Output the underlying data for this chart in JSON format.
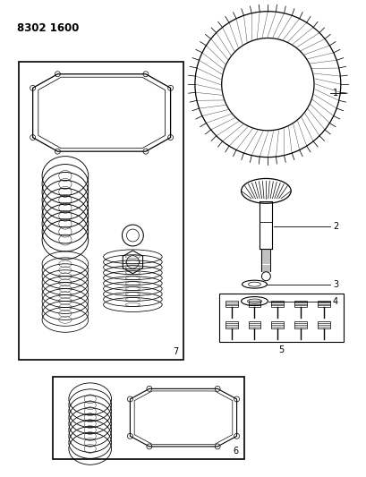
{
  "title": "8302 1600",
  "background_color": "#ffffff",
  "line_color": "#000000",
  "fig_width": 4.1,
  "fig_height": 5.33,
  "dpi": 100
}
